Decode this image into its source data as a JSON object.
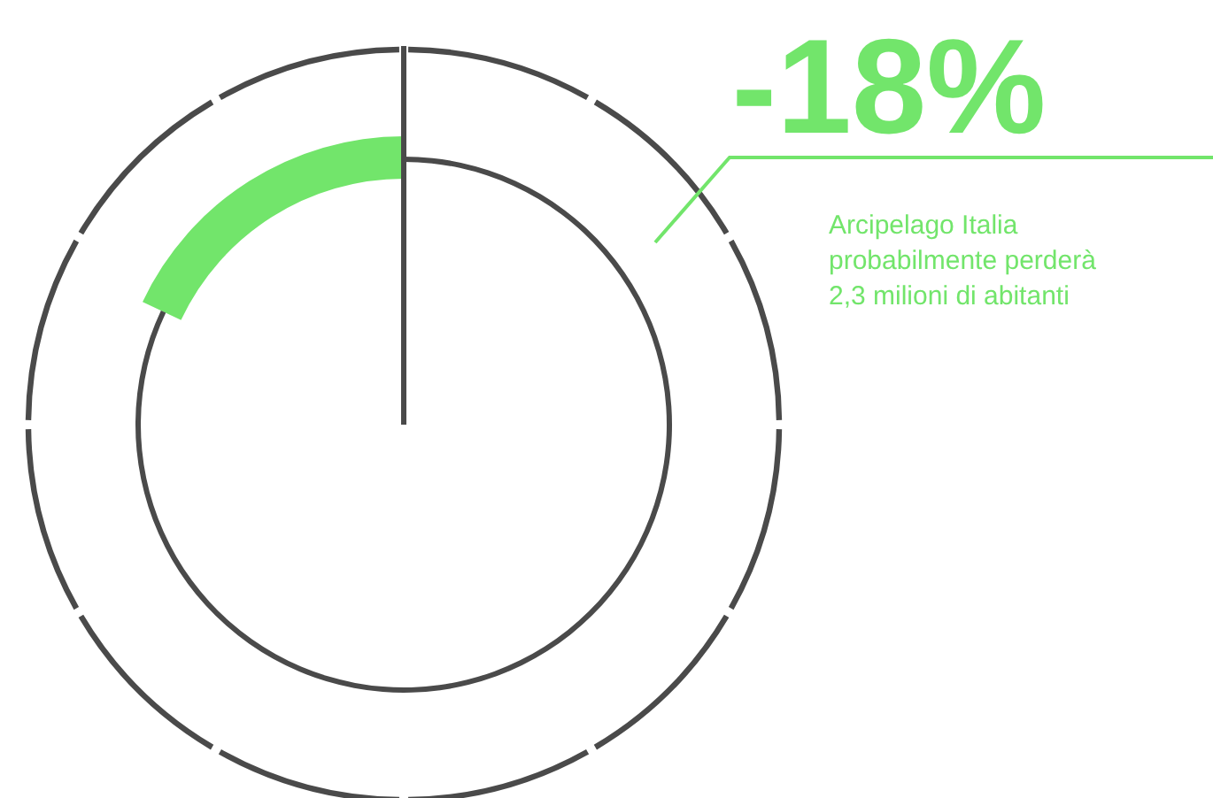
{
  "chart_data": {
    "type": "donut",
    "title": "-18%",
    "categories": [
      null,
      null
    ],
    "values": [
      18,
      82
    ],
    "colors": [
      "#72e56b",
      "#4a4a4a"
    ],
    "annotations": [
      "Arcipelago Italia\nprobabilmente perderà\n2,3 milioni di abitanti"
    ]
  }
}
